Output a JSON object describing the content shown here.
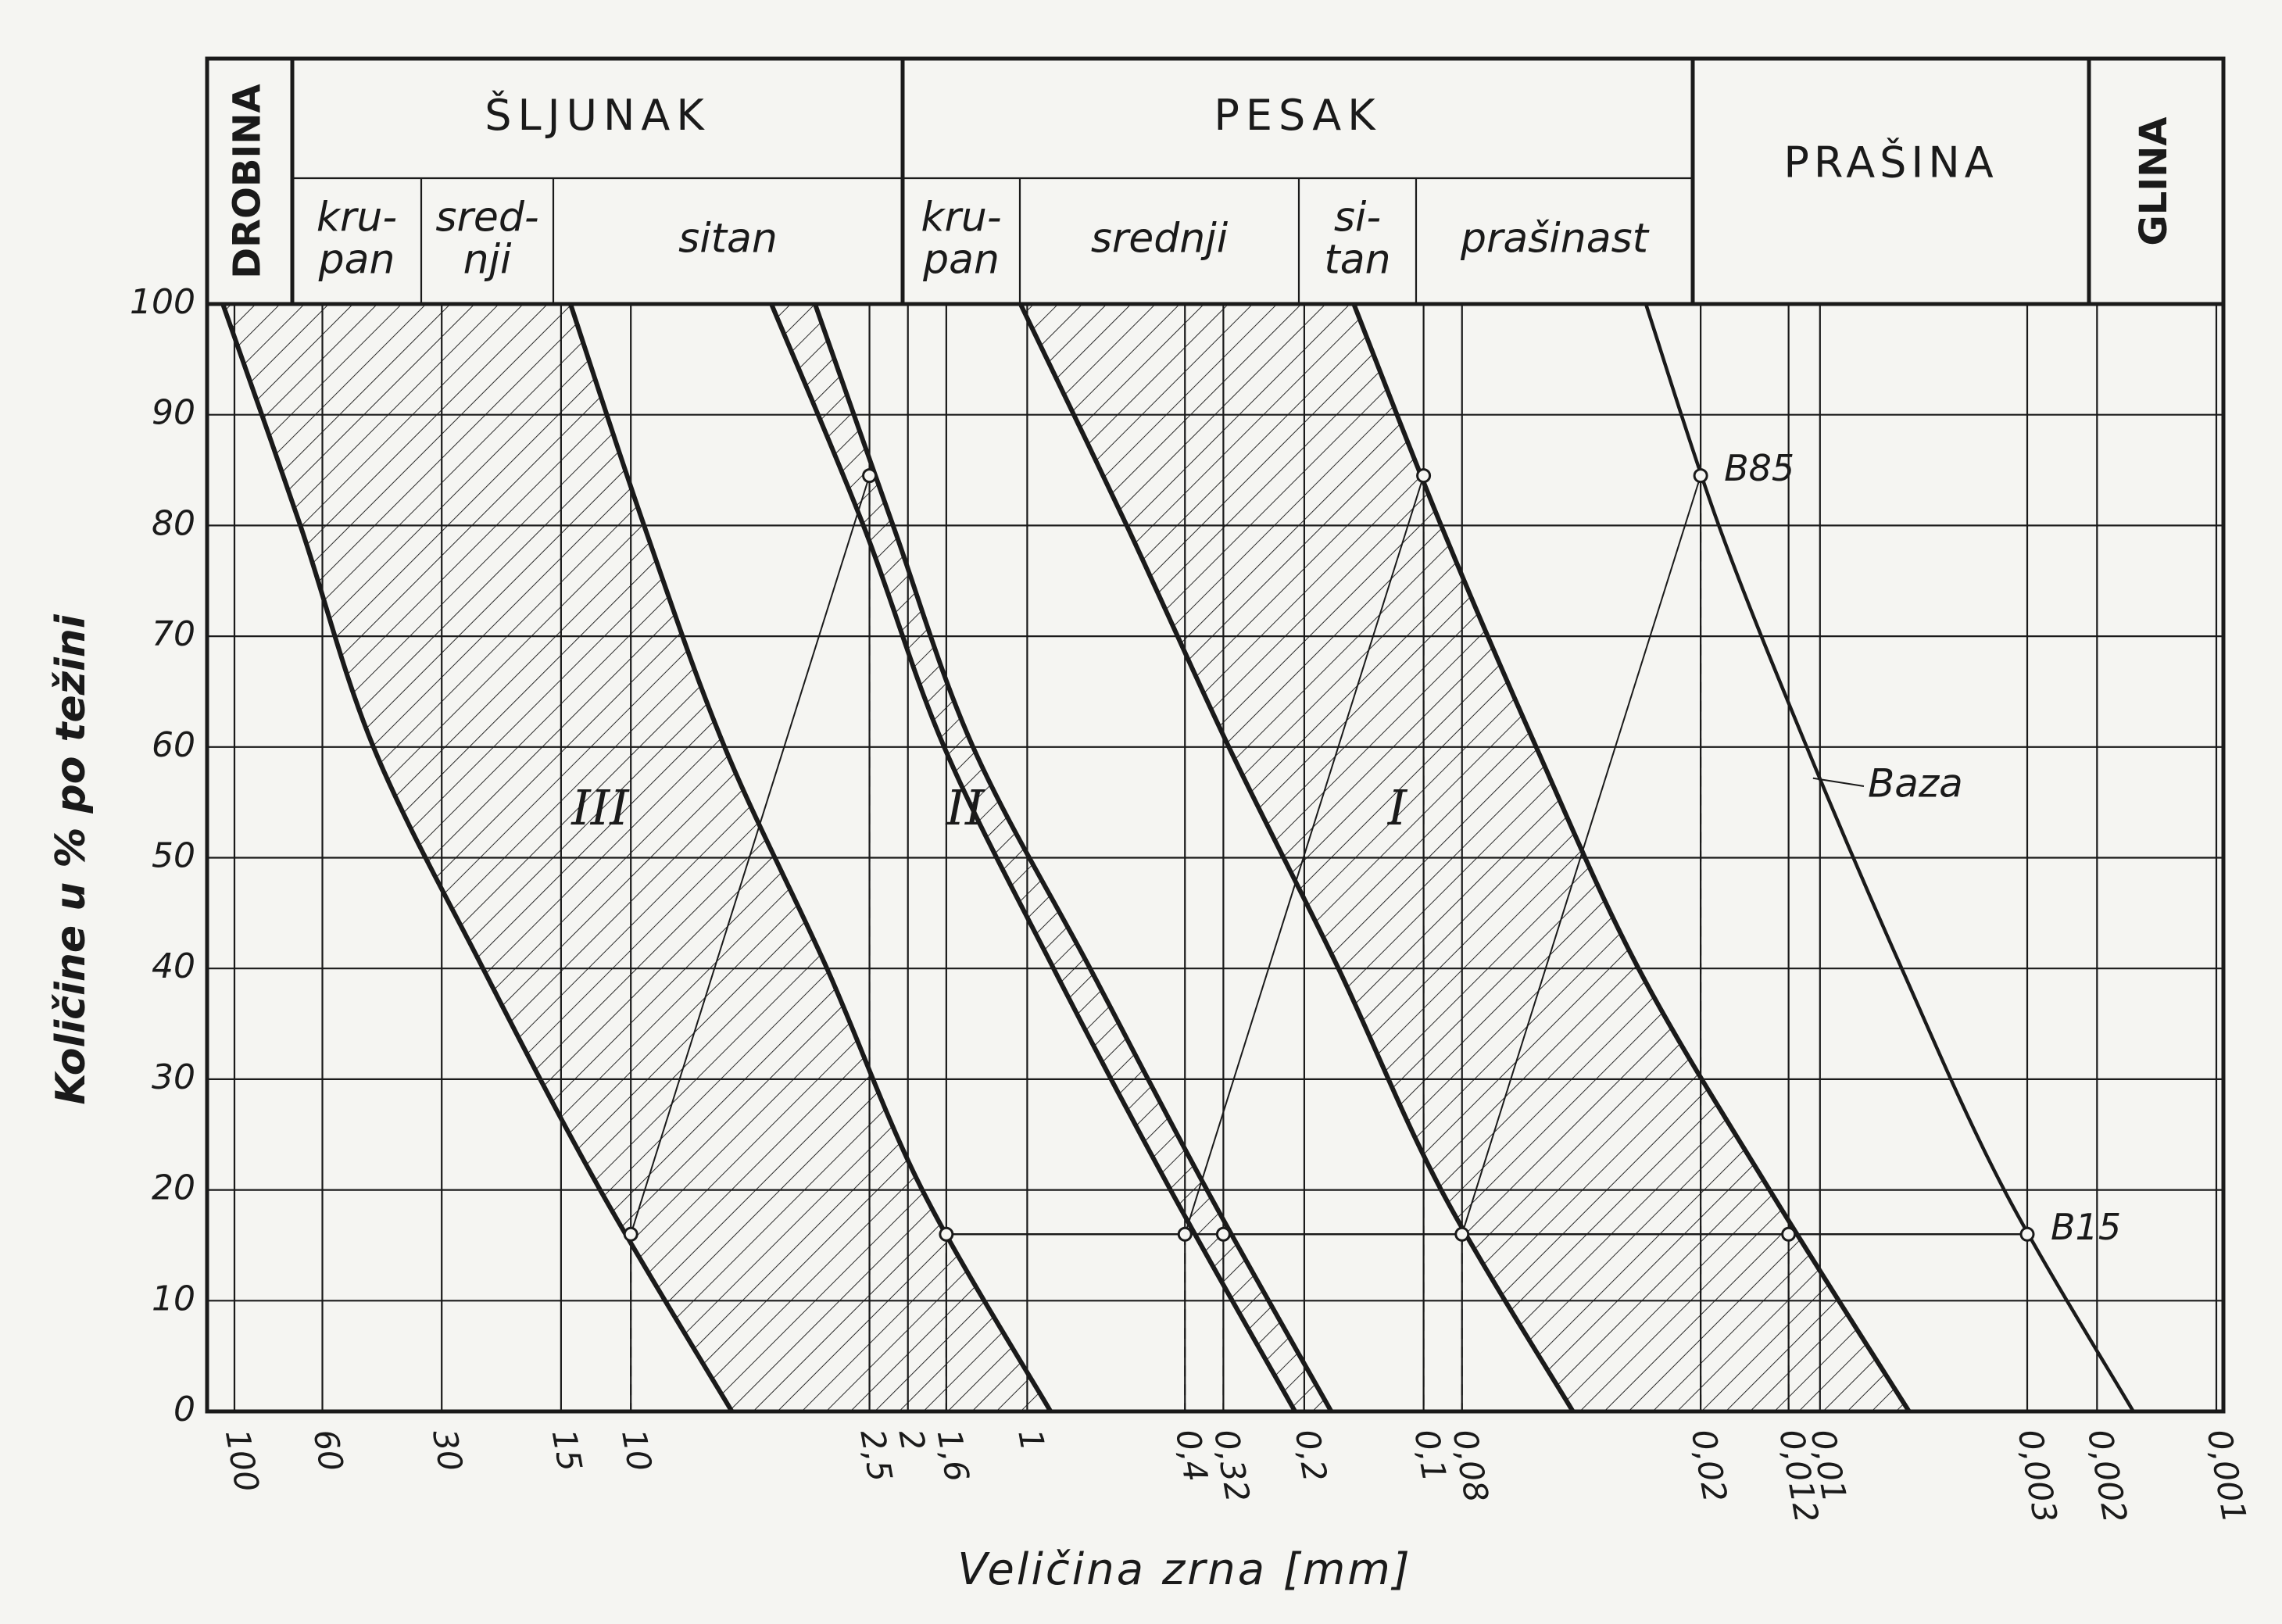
{
  "chart_data": {
    "type": "line",
    "x_label": "Veličina zrna [mm]",
    "y_label": "Količine u % po težini",
    "header": [
      {
        "label": "DROBINA"
      },
      {
        "label": "ŠLJUNAK",
        "parts": [
          [
            "kru-",
            "pan"
          ],
          [
            "sred-",
            "nji"
          ],
          [
            "sitan"
          ]
        ]
      },
      {
        "label": "PESAK",
        "parts": [
          [
            "kru-",
            "pan"
          ],
          [
            "srednji"
          ],
          [
            "si-",
            "tan"
          ],
          [
            "prašinast"
          ]
        ]
      },
      {
        "label": "PRAŠINA"
      },
      {
        "label": "GLINA"
      }
    ],
    "log_x": true,
    "grid": true,
    "xlim": [
      100,
      0.001
    ],
    "ylim": [
      0,
      100
    ],
    "yticks": [
      0,
      10,
      20,
      30,
      40,
      50,
      60,
      70,
      80,
      90,
      100
    ],
    "xticks": [
      100,
      60,
      30,
      15,
      10,
      {
        "value": 2.5,
        "label": "2,5"
      },
      2,
      {
        "value": 1.6,
        "label": "1,6"
      },
      1,
      {
        "value": 0.4,
        "label": "0,4"
      },
      {
        "value": 0.32,
        "label": "0,32"
      },
      {
        "value": 0.2,
        "label": "0,2"
      },
      {
        "value": 0.1,
        "label": "0,1"
      },
      {
        "value": 0.08,
        "label": "0,08"
      },
      {
        "value": 0.02,
        "label": "0,02"
      },
      {
        "value": 0.012,
        "label": "0,012"
      },
      {
        "value": 0.01,
        "label": "0,01"
      },
      {
        "value": 0.003,
        "label": "0,003"
      },
      {
        "value": 0.002,
        "label": "0,002"
      },
      {
        "value": 0.001,
        "label": "0,001"
      }
    ],
    "series": [
      {
        "color": "#1a1a1a",
        "x": [
          107,
          68.2,
          44.6,
          23.6,
          11.95,
          5.56
        ],
        "values": [
          100,
          80,
          60,
          40,
          20,
          0
        ]
      },
      {
        "color": "#1a1a1a",
        "x": [
          14.2,
          9.26,
          5.8,
          3.2,
          1.84,
          0.873
        ],
        "values": [
          100,
          80,
          60,
          40,
          20,
          0
        ]
      },
      {
        "color": "#1a1a1a",
        "x": [
          4.42,
          2.59,
          1.62,
          0.858,
          0.435,
          0.211
        ],
        "values": [
          100,
          80,
          60,
          40,
          20,
          0
        ]
      },
      {
        "color": "#1a1a1a",
        "x": [
          3.43,
          2.18,
          1.37,
          0.694,
          0.352,
          0.171
        ],
        "values": [
          100,
          80,
          60,
          40,
          20,
          0
        ]
      },
      {
        "color": "#1a1a1a",
        "x": [
          1.04,
          0.561,
          0.31,
          0.164,
          0.0903,
          0.042
        ],
        "values": [
          100,
          80,
          60,
          40,
          20,
          0
        ]
      },
      {
        "color": "#1a1a1a",
        "x": [
          0.15,
          0.0903,
          0.052,
          0.0287,
          0.0134,
          0.00596
        ],
        "values": [
          100,
          80,
          60,
          40,
          20,
          0
        ]
      },
      {
        "name": "Baza",
        "color": "#1a1a1a",
        "x": [
          0.0275,
          0.018,
          0.0108,
          0.00622,
          0.00343,
          0.00162
        ],
        "values": [
          100,
          80,
          60,
          40,
          20,
          0
        ]
      }
    ],
    "annotations": [
      "III",
      "II",
      "I"
    ],
    "points": [
      {
        "label": "B85",
        "x": 0.02,
        "y": 84.5
      },
      {
        "x": 0.1,
        "y": 84.5
      },
      {
        "x": 2.5,
        "y": 84.5
      },
      {
        "label": "B15",
        "x": 0.003,
        "y": 16
      },
      {
        "x": 0.012,
        "y": 16
      },
      {
        "x": 0.08,
        "y": 16
      },
      {
        "x": 0.32,
        "y": 16
      },
      {
        "x": 0.4,
        "y": 16
      },
      {
        "x": 1.6,
        "y": 16
      },
      {
        "x": 10,
        "y": 16
      }
    ]
  }
}
